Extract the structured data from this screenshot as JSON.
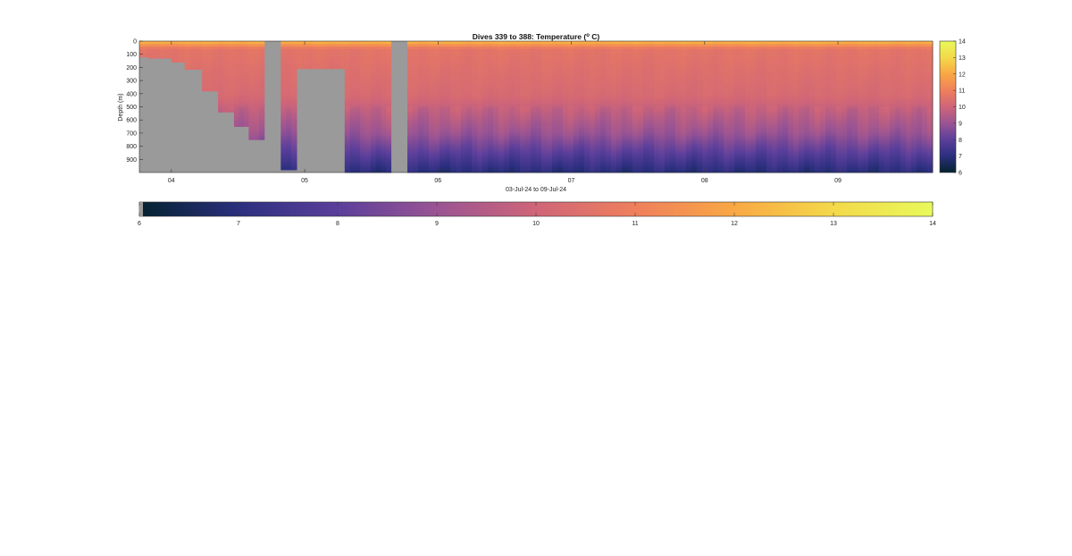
{
  "chart_data": {
    "type": "heatmap",
    "title_prefix": "Dives 339 to 388: Temperature (",
    "title_sup": "o",
    "title_suffix": " C)",
    "xlabel": "03-Jul-24 to 09-Jul-24",
    "ylabel": "Depth (m)",
    "x_ticks": [
      "04",
      "05",
      "06",
      "07",
      "08",
      "09"
    ],
    "y_ticks": [
      "0",
      "100",
      "200",
      "300",
      "400",
      "500",
      "600",
      "700",
      "800",
      "900"
    ],
    "y_tick_values": [
      0,
      100,
      200,
      300,
      400,
      500,
      600,
      700,
      800,
      900
    ],
    "ylim": [
      0,
      1000
    ],
    "xlim": [
      3.76,
      9.71
    ],
    "x_tick_values": [
      4,
      5,
      6,
      7,
      8,
      9
    ],
    "colorbar_ticks": [
      "6",
      "7",
      "8",
      "9",
      "10",
      "11",
      "12",
      "13",
      "14"
    ],
    "clim": [
      6,
      14
    ],
    "colormap": "thermal",
    "colormap_stops": [
      "#04232f",
      "#2b2f7e",
      "#5b3f9b",
      "#9a5493",
      "#cf6578",
      "#ef7f5c",
      "#f9a844",
      "#f4d94a",
      "#e8f95a"
    ],
    "no_data_color": "#9a9a9a",
    "columns": [
      {
        "x0": 3.76,
        "x1": 3.82,
        "max_depth": 120
      },
      {
        "x0": 3.82,
        "x1": 4.0,
        "max_depth": 130
      },
      {
        "x0": 4.0,
        "x1": 4.1,
        "max_depth": 160
      },
      {
        "x0": 4.1,
        "x1": 4.23,
        "max_depth": 215
      },
      {
        "x0": 4.23,
        "x1": 4.35,
        "max_depth": 380
      },
      {
        "x0": 4.35,
        "x1": 4.47,
        "max_depth": 540
      },
      {
        "x0": 4.47,
        "x1": 4.58,
        "max_depth": 650
      },
      {
        "x0": 4.58,
        "x1": 4.7,
        "max_depth": 750
      },
      {
        "x0": 4.82,
        "x1": 4.94,
        "max_depth": 980
      },
      {
        "x0": 4.94,
        "x1": 5.3,
        "max_depth": 210
      },
      {
        "x0": 5.3,
        "x1": 5.65,
        "max_depth": 1000
      },
      {
        "x0": 5.77,
        "x1": 9.71,
        "max_depth": 1000
      }
    ],
    "gaps": [
      {
        "x0": 4.7,
        "x1": 4.82
      },
      {
        "x0": 5.65,
        "x1": 5.77
      }
    ]
  }
}
